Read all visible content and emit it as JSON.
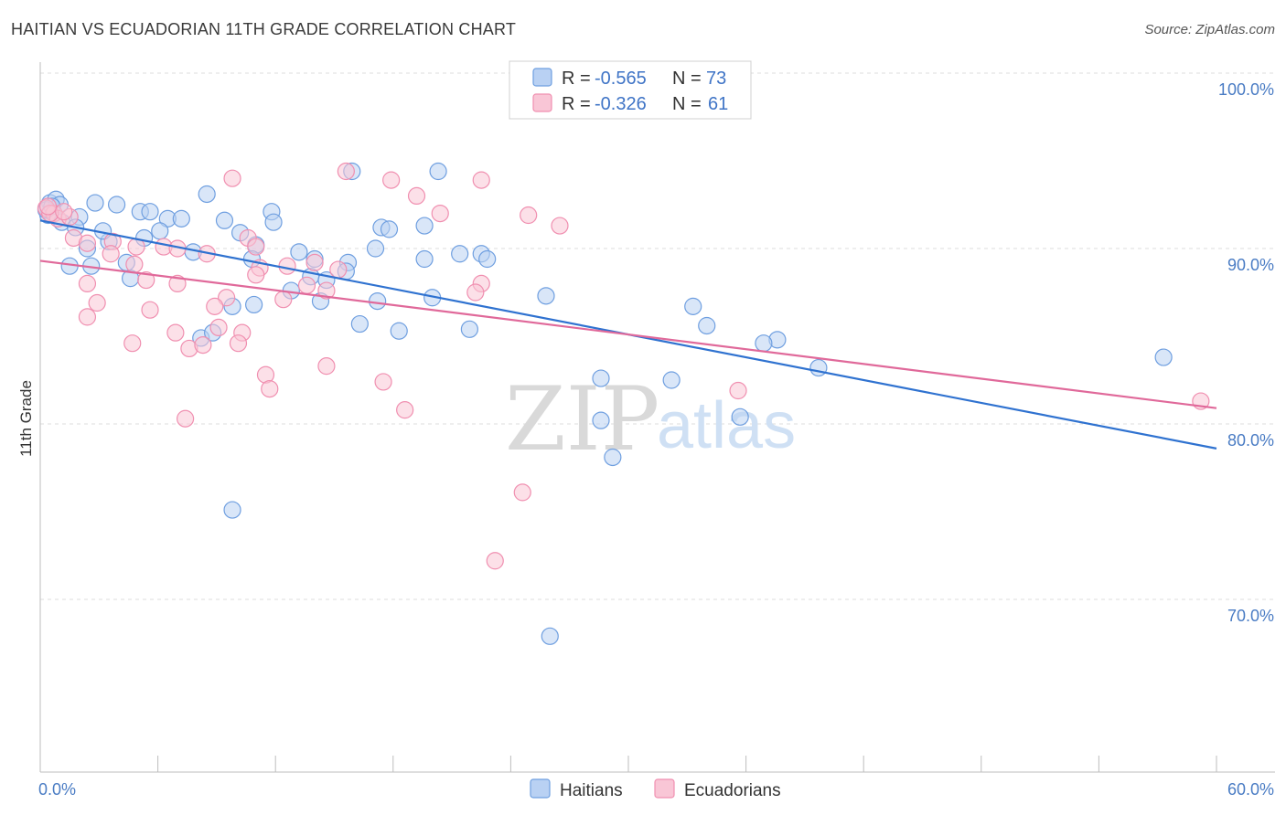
{
  "header": {
    "title": "HAITIAN VS ECUADORIAN 11TH GRADE CORRELATION CHART",
    "source": "Source: ZipAtlas.com"
  },
  "legend": {
    "r_label": "R =",
    "n_label": "N =",
    "items": [
      {
        "r": "-0.565",
        "n": "73",
        "color": "#6f9fe0"
      },
      {
        "r": "-0.326",
        "n": "61",
        "color": "#f08fb0"
      }
    ]
  },
  "watermark": {
    "zip": "ZIP",
    "atlas": "atlas"
  },
  "chart_data": {
    "type": "scatter",
    "title": "HAITIAN VS ECUADORIAN 11TH GRADE CORRELATION CHART",
    "xlabel": "",
    "ylabel": "11th Grade",
    "xlim": [
      0,
      60
    ],
    "ylim": [
      59,
      103
    ],
    "x_ticks": [
      "0.0%",
      "60.0%"
    ],
    "y_ticks": [
      {
        "value": 100,
        "label": "100.0%"
      },
      {
        "value": 90,
        "label": "90.0%"
      },
      {
        "value": 80,
        "label": "80.0%"
      },
      {
        "value": 70,
        "label": "70.0%"
      }
    ],
    "grid": true,
    "legend_position": "top-center",
    "series": [
      {
        "name": "Haitians",
        "color": "#6f9fe0",
        "fill": "#b9d1f3",
        "trend": {
          "x": [
            0,
            60
          ],
          "y": [
            91.6,
            78.6
          ]
        },
        "points": [
          [
            0.5,
            92.6
          ],
          [
            0.8,
            92.8
          ],
          [
            1.0,
            92.5
          ],
          [
            0.4,
            91.9
          ],
          [
            1.1,
            91.5
          ],
          [
            2.0,
            91.8
          ],
          [
            2.8,
            92.6
          ],
          [
            3.9,
            92.5
          ],
          [
            5.1,
            92.1
          ],
          [
            5.6,
            92.1
          ],
          [
            6.5,
            91.7
          ],
          [
            8.5,
            93.1
          ],
          [
            9.4,
            91.6
          ],
          [
            11.8,
            92.1
          ],
          [
            11.9,
            91.5
          ],
          [
            10.2,
            90.9
          ],
          [
            2.4,
            90.0
          ],
          [
            3.5,
            90.4
          ],
          [
            5.3,
            90.6
          ],
          [
            7.8,
            89.8
          ],
          [
            11.0,
            90.2
          ],
          [
            13.2,
            89.8
          ],
          [
            14.0,
            89.4
          ],
          [
            15.7,
            89.2
          ],
          [
            17.4,
            91.2
          ],
          [
            17.8,
            91.1
          ],
          [
            19.6,
            91.3
          ],
          [
            19.6,
            89.4
          ],
          [
            21.4,
            89.7
          ],
          [
            22.5,
            89.7
          ],
          [
            22.8,
            89.4
          ],
          [
            17.1,
            90.0
          ],
          [
            1.5,
            89.0
          ],
          [
            2.6,
            89.0
          ],
          [
            4.6,
            88.3
          ],
          [
            10.8,
            89.4
          ],
          [
            13.8,
            88.4
          ],
          [
            14.6,
            88.2
          ],
          [
            15.6,
            88.7
          ],
          [
            12.8,
            87.6
          ],
          [
            9.8,
            86.7
          ],
          [
            10.9,
            86.8
          ],
          [
            14.3,
            87.0
          ],
          [
            17.2,
            87.0
          ],
          [
            20.0,
            87.2
          ],
          [
            16.3,
            85.7
          ],
          [
            18.3,
            85.3
          ],
          [
            21.9,
            85.4
          ],
          [
            8.2,
            84.9
          ],
          [
            8.8,
            85.2
          ],
          [
            15.9,
            94.4
          ],
          [
            20.3,
            94.4
          ],
          [
            25.8,
            87.3
          ],
          [
            33.3,
            86.7
          ],
          [
            34.0,
            85.6
          ],
          [
            37.6,
            84.8
          ],
          [
            36.9,
            84.6
          ],
          [
            39.7,
            83.2
          ],
          [
            57.3,
            83.8
          ],
          [
            28.6,
            82.6
          ],
          [
            32.2,
            82.5
          ],
          [
            28.6,
            80.2
          ],
          [
            35.7,
            80.4
          ],
          [
            29.2,
            78.1
          ],
          [
            9.8,
            75.1
          ],
          [
            26.0,
            67.9
          ],
          [
            0.3,
            92.2
          ],
          [
            1.8,
            91.2
          ],
          [
            6.1,
            91.0
          ],
          [
            7.2,
            91.7
          ],
          [
            4.4,
            89.2
          ],
          [
            3.2,
            91.0
          ],
          [
            0.6,
            92.4
          ]
        ]
      },
      {
        "name": "Ecuadorians",
        "color": "#f08fb0",
        "fill": "#f9c6d6",
        "trend": {
          "x": [
            0,
            60
          ],
          "y": [
            89.3,
            80.9
          ]
        },
        "points": [
          [
            0.3,
            92.3
          ],
          [
            0.7,
            92.0
          ],
          [
            0.9,
            91.7
          ],
          [
            0.5,
            92.0
          ],
          [
            1.5,
            91.8
          ],
          [
            1.7,
            90.6
          ],
          [
            2.4,
            90.3
          ],
          [
            3.7,
            90.4
          ],
          [
            4.9,
            90.1
          ],
          [
            6.3,
            90.1
          ],
          [
            7.0,
            90.0
          ],
          [
            10.6,
            90.6
          ],
          [
            11.0,
            90.1
          ],
          [
            3.6,
            89.7
          ],
          [
            4.8,
            89.1
          ],
          [
            8.5,
            89.7
          ],
          [
            11.2,
            88.9
          ],
          [
            12.6,
            89.0
          ],
          [
            14.0,
            89.2
          ],
          [
            15.2,
            88.8
          ],
          [
            11.0,
            88.5
          ],
          [
            13.6,
            87.9
          ],
          [
            14.6,
            87.6
          ],
          [
            2.4,
            88.0
          ],
          [
            5.4,
            88.2
          ],
          [
            7.0,
            88.0
          ],
          [
            12.4,
            87.1
          ],
          [
            9.5,
            87.2
          ],
          [
            2.9,
            86.9
          ],
          [
            5.6,
            86.5
          ],
          [
            2.4,
            86.1
          ],
          [
            8.9,
            86.7
          ],
          [
            9.1,
            85.5
          ],
          [
            10.3,
            85.2
          ],
          [
            6.9,
            85.2
          ],
          [
            4.7,
            84.6
          ],
          [
            7.6,
            84.3
          ],
          [
            8.3,
            84.5
          ],
          [
            10.1,
            84.6
          ],
          [
            14.6,
            83.3
          ],
          [
            11.5,
            82.8
          ],
          [
            11.7,
            82.0
          ],
          [
            17.5,
            82.4
          ],
          [
            18.6,
            80.8
          ],
          [
            7.4,
            80.3
          ],
          [
            22.5,
            88.0
          ],
          [
            22.2,
            87.5
          ],
          [
            35.6,
            81.9
          ],
          [
            59.2,
            81.3
          ],
          [
            24.6,
            76.1
          ],
          [
            23.2,
            72.2
          ],
          [
            9.8,
            94.0
          ],
          [
            15.6,
            94.4
          ],
          [
            17.9,
            93.9
          ],
          [
            19.2,
            93.0
          ],
          [
            22.5,
            93.9
          ],
          [
            20.4,
            92.0
          ],
          [
            24.9,
            91.9
          ],
          [
            26.5,
            91.3
          ],
          [
            0.4,
            92.4
          ],
          [
            1.2,
            92.1
          ]
        ]
      }
    ]
  }
}
